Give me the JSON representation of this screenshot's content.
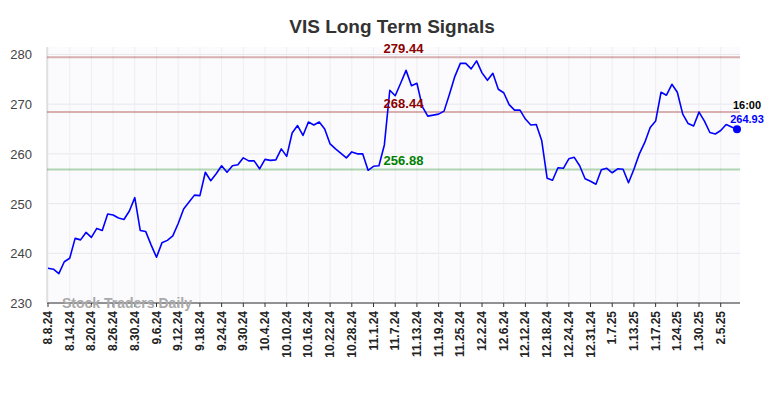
{
  "chart_data": {
    "type": "line",
    "title": "VIS Long Term Signals",
    "categories": [
      "8.8.24",
      null,
      null,
      null,
      "8.14.24",
      null,
      null,
      null,
      "8.20.24",
      null,
      null,
      null,
      "8.26.24",
      null,
      null,
      null,
      "8.30.24",
      null,
      null,
      null,
      "9.6.24",
      null,
      null,
      null,
      "9.12.24",
      null,
      null,
      null,
      "9.18.24",
      null,
      null,
      null,
      "9.24.24",
      null,
      null,
      null,
      "9.30.24",
      null,
      null,
      null,
      "10.4.24",
      null,
      null,
      null,
      "10.10.24",
      null,
      null,
      null,
      "10.16.24",
      null,
      null,
      null,
      "10.22.24",
      null,
      null,
      null,
      "10.28.24",
      null,
      null,
      null,
      "11.1.24",
      null,
      null,
      null,
      "11.7.24",
      null,
      null,
      null,
      "11.13.24",
      null,
      null,
      null,
      "11.19.24",
      null,
      null,
      null,
      "11.25.24",
      null,
      null,
      null,
      "12.2.24",
      null,
      null,
      null,
      "12.6.24",
      null,
      null,
      null,
      "12.12.24",
      null,
      null,
      null,
      "12.18.24",
      null,
      null,
      null,
      "12.24.24",
      null,
      null,
      null,
      "12.31.24",
      null,
      null,
      null,
      "1.7.25",
      null,
      null,
      null,
      "1.13.25",
      null,
      null,
      null,
      "1.17.25",
      null,
      null,
      null,
      "1.24.25",
      null,
      null,
      null,
      "1.30.25",
      null,
      null,
      null,
      "2.5.25",
      null,
      null,
      null
    ],
    "series": [
      {
        "color": "#0000ff",
        "values": [
          237.0,
          236.8,
          235.9,
          238.3,
          239.0,
          243.0,
          242.7,
          244.2,
          243.2,
          245.0,
          244.6,
          247.9,
          247.7,
          247.1,
          246.8,
          248.5,
          251.2,
          244.6,
          244.4,
          241.7,
          239.2,
          242.1,
          242.6,
          243.5,
          246.0,
          248.9,
          250.3,
          251.7,
          251.6,
          256.3,
          254.6,
          256.0,
          257.6,
          256.3,
          257.6,
          257.8,
          259.2,
          258.6,
          258.6,
          257.0,
          258.9,
          258.7,
          258.8,
          261.0,
          259.5,
          264.2,
          265.7,
          263.7,
          266.4,
          265.8,
          266.4,
          265.0,
          262.0,
          261.0,
          260.1,
          259.2,
          260.4,
          260.0,
          260.0,
          256.7,
          257.5,
          257.6,
          261.8,
          272.8,
          271.7,
          274.2,
          276.8,
          273.7,
          274.2,
          269.5,
          267.6,
          267.8,
          268.0,
          268.6,
          272.0,
          275.6,
          278.2,
          278.2,
          277.1,
          278.7,
          276.3,
          274.8,
          276.2,
          273.0,
          272.3,
          269.9,
          268.8,
          268.8,
          267.0,
          265.8,
          265.9,
          262.7,
          255.1,
          254.7,
          257.2,
          257.1,
          259.0,
          259.3,
          257.6,
          255.0,
          254.5,
          253.9,
          256.8,
          257.1,
          256.2,
          257.0,
          256.9,
          254.2,
          256.9,
          260.0,
          262.3,
          265.3,
          266.6,
          272.4,
          271.8,
          274.0,
          272.4,
          268.0,
          266.1,
          265.6,
          268.4,
          266.6,
          264.3,
          264.0,
          264.7,
          265.9,
          265.4,
          264.93
        ]
      }
    ],
    "reference_lines": [
      {
        "value": 279.44,
        "color": "#8b0000"
      },
      {
        "value": 268.44,
        "color": "#8b0000"
      },
      {
        "value": 256.88,
        "color": "#008000"
      }
    ],
    "time_label": "16:00",
    "watermark": "Stock Traders Daily",
    "ylim": [
      230,
      281.5
    ],
    "yticks": [
      230,
      240,
      250,
      260,
      270,
      280
    ],
    "grid": true
  }
}
